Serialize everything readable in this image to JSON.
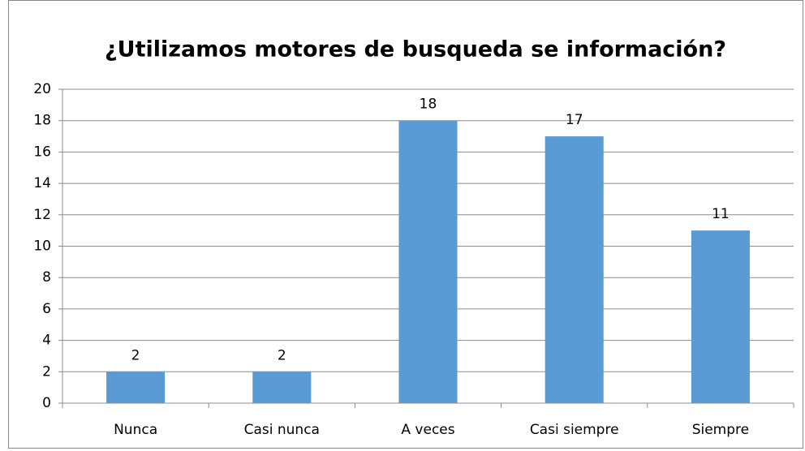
{
  "chart_data": {
    "type": "bar",
    "title": "¿Utilizamos motores de busqueda se información?",
    "categories": [
      "Nunca",
      "Casi nunca",
      "A veces",
      "Casi siempre",
      "Siempre"
    ],
    "values": [
      2,
      2,
      18,
      17,
      11
    ],
    "color": "#5b9bd5",
    "ylim": [
      0,
      20
    ],
    "yticks": [
      0,
      2,
      4,
      6,
      8,
      10,
      12,
      14,
      16,
      18,
      20
    ],
    "grid": true
  }
}
